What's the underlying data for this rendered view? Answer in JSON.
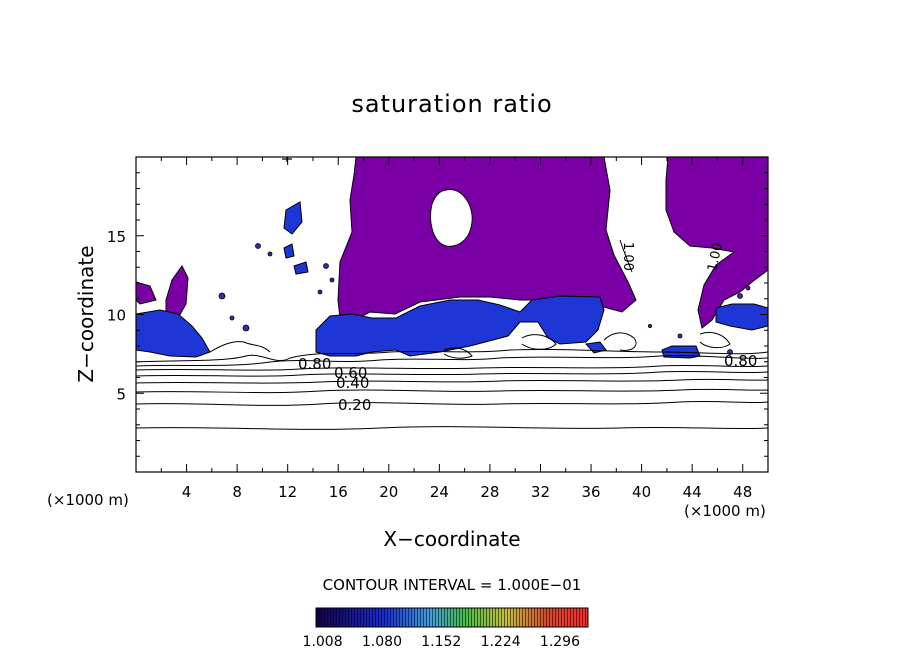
{
  "chart_data": {
    "type": "heatmap",
    "title": "saturation ratio",
    "xlabel": "X−coordinate",
    "ylabel": "Z−coordinate",
    "x_unit": "(×1000 m)",
    "z_unit": "(×1000 m)",
    "xlim": [
      0,
      50
    ],
    "ylim": [
      0,
      20
    ],
    "x_ticks": [
      "4",
      "8",
      "12",
      "16",
      "20",
      "24",
      "28",
      "32",
      "36",
      "40",
      "44",
      "48"
    ],
    "y_ticks": [
      "5",
      "10",
      "15"
    ],
    "contour_interval_text": "CONTOUR INTERVAL = 1.000E−01",
    "contour_labels": [
      "0.80",
      "0.60",
      "0.40",
      "0.20",
      "1.00",
      "1.00",
      "0.80"
    ],
    "colorbar_labels": [
      "1.008",
      "1.080",
      "1.152",
      "1.224",
      "1.296"
    ],
    "colorbar_range": [
      1.0,
      1.33
    ],
    "colors": {
      "saturated": "#7a00a6",
      "low": "#1a2bd8",
      "colorbar_stops": [
        "#140046",
        "#1a2bd8",
        "#3fa0e0",
        "#48c048",
        "#c8c038",
        "#d84a28",
        "#ff2a2a"
      ]
    }
  }
}
